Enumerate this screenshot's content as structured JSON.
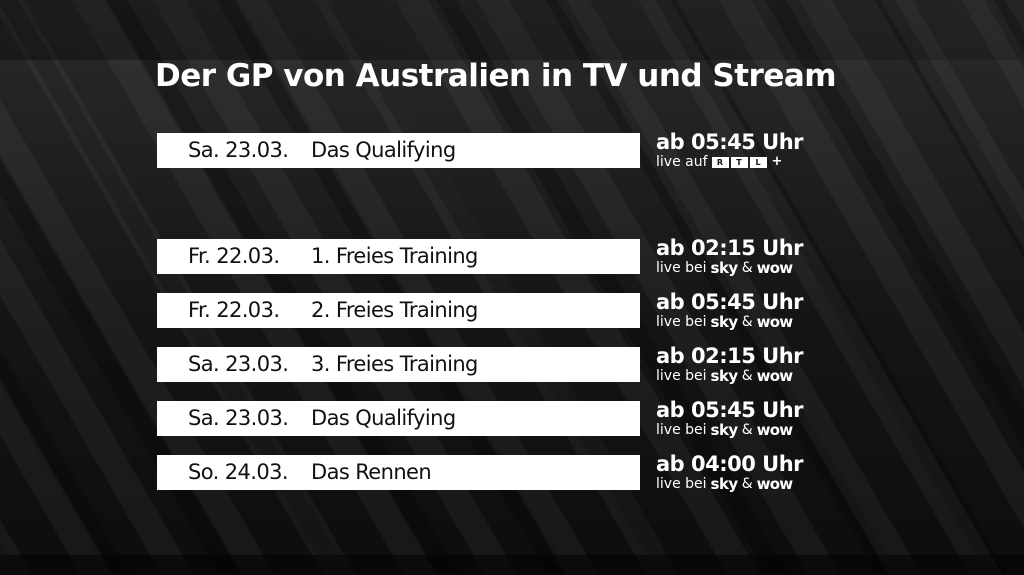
{
  "title": "Der GP von Australien in TV und Stream",
  "rtl_section": {
    "date": "Sa. 23.03.",
    "event": "Das Qualifying",
    "time": "ab 05:45 Uhr",
    "live_prefix": "live auf",
    "logo_letters": [
      "R",
      "T",
      "L"
    ],
    "logo_plus": "+"
  },
  "sky_section": {
    "live_prefix": "live bei",
    "provider1": "sky",
    "amp": "&",
    "provider2": "wow",
    "rows": [
      {
        "date": "Fr.  22.03.",
        "event": "1. Freies Training",
        "time": "ab 02:15 Uhr"
      },
      {
        "date": "Fr.  22.03.",
        "event": "2. Freies Training",
        "time": "ab 05:45 Uhr"
      },
      {
        "date": "Sa. 23.03.",
        "event": "3. Freies Training",
        "time": "ab 02:15 Uhr"
      },
      {
        "date": "Sa. 23.03.",
        "event": "Das Qualifying",
        "time": "ab 05:45 Uhr"
      },
      {
        "date": "So. 24.03.",
        "event": "Das Rennen",
        "time": "ab 04:00 Uhr"
      }
    ]
  }
}
